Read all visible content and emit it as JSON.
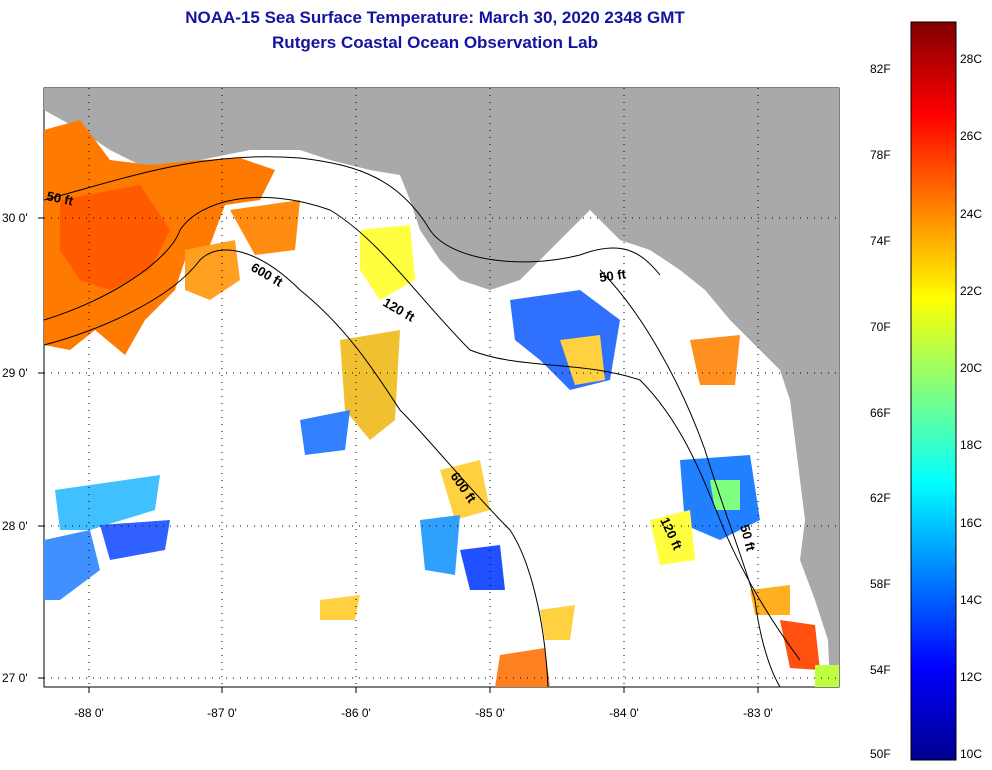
{
  "header": {
    "title": "NOAA-15 Sea Surface Temperature:  March 30, 2020 2348 GMT",
    "subtitle": "Rutgers Coastal Ocean Observation Lab"
  },
  "map": {
    "lon_labels": [
      "-88 0'",
      "-87 0'",
      "-86 0'",
      "-85 0'",
      "-84 0'",
      "-83 0'"
    ],
    "lat_labels": [
      "30 0'",
      "29 0'",
      "28 0'",
      "27 0'"
    ],
    "contour_labels": [
      "50 ft",
      "600 ft",
      "120 ft",
      "50 ft",
      "600 ft",
      "120 ft",
      "50 ft"
    ],
    "land_color": "#a9a9a9"
  },
  "colorbar": {
    "fahrenheit_labels": [
      "82F",
      "78F",
      "74F",
      "70F",
      "66F",
      "62F",
      "58F",
      "54F",
      "50F"
    ],
    "celsius_labels": [
      "28C",
      "26C",
      "24C",
      "22C",
      "20C",
      "18C",
      "16C",
      "14C",
      "12C",
      "10C"
    ]
  }
}
